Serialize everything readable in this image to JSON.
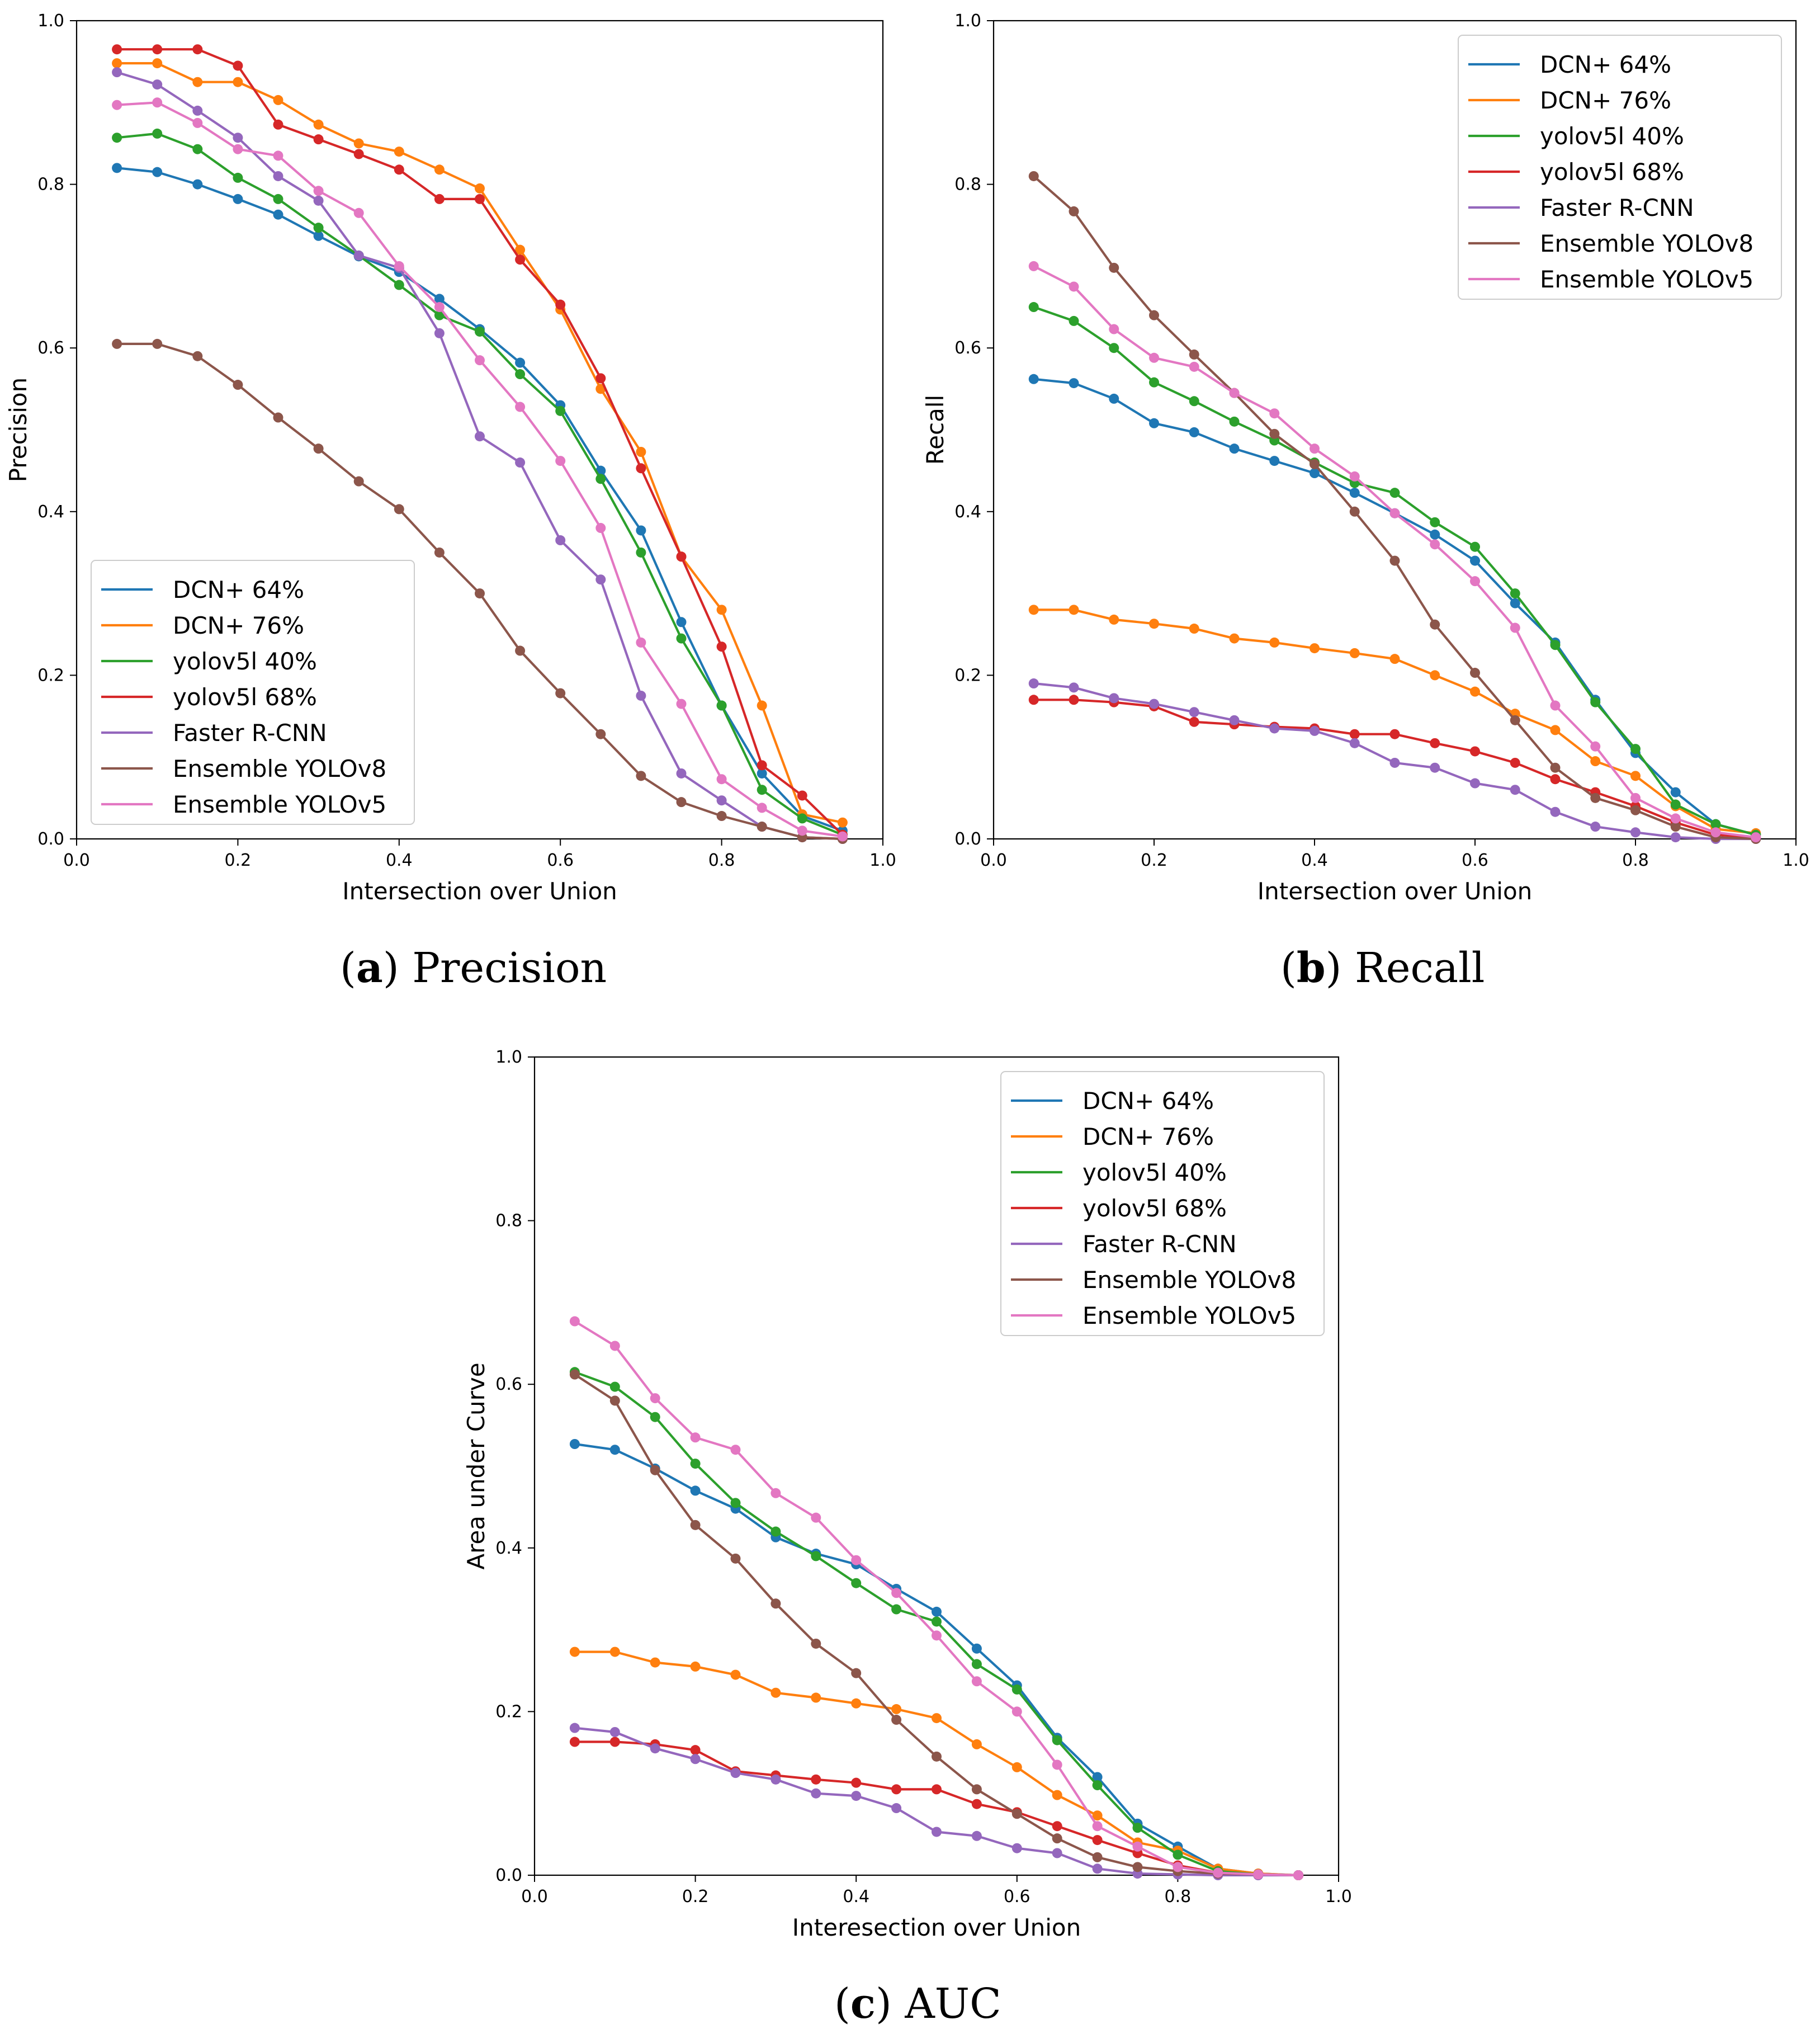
{
  "chart_data": [
    {
      "type": "line",
      "caption_letter": "a",
      "caption_text": "Precision",
      "xlabel": "Intersection over Union",
      "ylabel": "Precision",
      "xlim": [
        0.0,
        1.0
      ],
      "ylim": [
        0.0,
        1.0
      ],
      "xticks": [
        "0.0",
        "0.2",
        "0.4",
        "0.6",
        "0.8",
        "1.0"
      ],
      "yticks": [
        "0.0",
        "0.2",
        "0.4",
        "0.6",
        "0.8",
        "1.0"
      ],
      "legend_position": "lower-left",
      "x": [
        0.05,
        0.1,
        0.15,
        0.2,
        0.25,
        0.3,
        0.35,
        0.4,
        0.45,
        0.5,
        0.55,
        0.6,
        0.65,
        0.7,
        0.75,
        0.8,
        0.85,
        0.9,
        0.95
      ],
      "series": [
        {
          "name": "DCN+ 64%",
          "color": "#1f77b4",
          "values": [
            0.82,
            0.815,
            0.8,
            0.782,
            0.763,
            0.737,
            0.712,
            0.693,
            0.66,
            0.623,
            0.582,
            0.53,
            0.45,
            0.377,
            0.265,
            0.163,
            0.08,
            0.028,
            0.01
          ]
        },
        {
          "name": "DCN+ 76%",
          "color": "#ff7f0e",
          "values": [
            0.948,
            0.948,
            0.925,
            0.925,
            0.903,
            0.873,
            0.85,
            0.84,
            0.818,
            0.795,
            0.72,
            0.647,
            0.55,
            0.473,
            0.345,
            0.28,
            0.163,
            0.03,
            0.02
          ]
        },
        {
          "name": "yolov5l 40%",
          "color": "#2ca02c",
          "values": [
            0.857,
            0.862,
            0.843,
            0.808,
            0.782,
            0.747,
            0.713,
            0.677,
            0.64,
            0.62,
            0.568,
            0.523,
            0.44,
            0.35,
            0.245,
            0.163,
            0.06,
            0.025,
            0.005
          ]
        },
        {
          "name": "yolov5l 68%",
          "color": "#d62728",
          "values": [
            0.965,
            0.965,
            0.965,
            0.945,
            0.873,
            0.855,
            0.837,
            0.818,
            0.782,
            0.782,
            0.708,
            0.653,
            0.563,
            0.453,
            0.345,
            0.235,
            0.09,
            0.053,
            0.005
          ]
        },
        {
          "name": "Faster R-CNN",
          "color": "#9467bd",
          "values": [
            0.937,
            0.922,
            0.89,
            0.857,
            0.81,
            0.78,
            0.713,
            0.698,
            0.618,
            0.492,
            0.46,
            0.365,
            0.317,
            0.175,
            0.08,
            0.047,
            0.015,
            0.002,
            0.0
          ]
        },
        {
          "name": "Ensemble YOLOv8",
          "color": "#8c564b",
          "values": [
            0.605,
            0.605,
            0.59,
            0.555,
            0.515,
            0.477,
            0.437,
            0.403,
            0.35,
            0.3,
            0.23,
            0.178,
            0.128,
            0.077,
            0.045,
            0.028,
            0.015,
            0.002,
            0.0
          ]
        },
        {
          "name": "Ensemble YOLOv5",
          "color": "#e377c2",
          "values": [
            0.897,
            0.9,
            0.875,
            0.843,
            0.835,
            0.792,
            0.765,
            0.7,
            0.65,
            0.585,
            0.528,
            0.462,
            0.38,
            0.24,
            0.165,
            0.073,
            0.038,
            0.01,
            0.003
          ]
        }
      ]
    },
    {
      "type": "line",
      "caption_letter": "b",
      "caption_text": "Recall",
      "xlabel": "Intersection over Union",
      "ylabel": "Recall",
      "xlim": [
        0.0,
        1.0
      ],
      "ylim": [
        0.0,
        1.0
      ],
      "xticks": [
        "0.0",
        "0.2",
        "0.4",
        "0.6",
        "0.8",
        "1.0"
      ],
      "yticks": [
        "0.0",
        "0.2",
        "0.4",
        "0.6",
        "0.8",
        "1.0"
      ],
      "legend_position": "upper-right",
      "x": [
        0.05,
        0.1,
        0.15,
        0.2,
        0.25,
        0.3,
        0.35,
        0.4,
        0.45,
        0.5,
        0.55,
        0.6,
        0.65,
        0.7,
        0.75,
        0.8,
        0.85,
        0.9,
        0.95
      ],
      "series": [
        {
          "name": "DCN+ 64%",
          "color": "#1f77b4",
          "values": [
            0.562,
            0.557,
            0.538,
            0.508,
            0.497,
            0.477,
            0.462,
            0.447,
            0.423,
            0.398,
            0.372,
            0.34,
            0.288,
            0.24,
            0.17,
            0.105,
            0.057,
            0.018,
            0.005
          ]
        },
        {
          "name": "DCN+ 76%",
          "color": "#ff7f0e",
          "values": [
            0.28,
            0.28,
            0.268,
            0.263,
            0.257,
            0.245,
            0.24,
            0.233,
            0.227,
            0.22,
            0.2,
            0.18,
            0.153,
            0.133,
            0.095,
            0.077,
            0.04,
            0.012,
            0.007
          ]
        },
        {
          "name": "yolov5l 40%",
          "color": "#2ca02c",
          "values": [
            0.65,
            0.633,
            0.6,
            0.558,
            0.535,
            0.51,
            0.487,
            0.46,
            0.435,
            0.423,
            0.387,
            0.357,
            0.3,
            0.237,
            0.167,
            0.11,
            0.042,
            0.018,
            0.005
          ]
        },
        {
          "name": "yolov5l 68%",
          "color": "#d62728",
          "values": [
            0.17,
            0.17,
            0.167,
            0.162,
            0.143,
            0.14,
            0.137,
            0.135,
            0.128,
            0.128,
            0.117,
            0.107,
            0.093,
            0.073,
            0.057,
            0.04,
            0.02,
            0.005,
            0.002
          ]
        },
        {
          "name": "Faster R-CNN",
          "color": "#9467bd",
          "values": [
            0.19,
            0.185,
            0.172,
            0.165,
            0.155,
            0.145,
            0.135,
            0.132,
            0.117,
            0.093,
            0.087,
            0.068,
            0.06,
            0.033,
            0.015,
            0.008,
            0.002,
            0.0,
            0.0
          ]
        },
        {
          "name": "Ensemble YOLOv8",
          "color": "#8c564b",
          "values": [
            0.81,
            0.767,
            0.698,
            0.64,
            0.592,
            0.545,
            0.495,
            0.458,
            0.4,
            0.34,
            0.262,
            0.203,
            0.145,
            0.087,
            0.05,
            0.035,
            0.015,
            0.002,
            0.0
          ]
        },
        {
          "name": "Ensemble YOLOv5",
          "color": "#e377c2",
          "values": [
            0.7,
            0.675,
            0.623,
            0.588,
            0.577,
            0.545,
            0.52,
            0.477,
            0.443,
            0.398,
            0.36,
            0.315,
            0.258,
            0.163,
            0.113,
            0.05,
            0.025,
            0.008,
            0.002
          ]
        }
      ]
    },
    {
      "type": "line",
      "caption_letter": "c",
      "caption_text": "AUC",
      "xlabel": "Interesection over Union",
      "ylabel": "Area under Curve",
      "xlim": [
        0.0,
        1.0
      ],
      "ylim": [
        0.0,
        1.0
      ],
      "xticks": [
        "0.0",
        "0.2",
        "0.4",
        "0.6",
        "0.8",
        "1.0"
      ],
      "yticks": [
        "0.0",
        "0.2",
        "0.4",
        "0.6",
        "0.8",
        "1.0"
      ],
      "legend_position": "upper-right",
      "x": [
        0.05,
        0.1,
        0.15,
        0.2,
        0.25,
        0.3,
        0.35,
        0.4,
        0.45,
        0.5,
        0.55,
        0.6,
        0.65,
        0.7,
        0.75,
        0.8,
        0.85,
        0.9,
        0.95
      ],
      "series": [
        {
          "name": "DCN+ 64%",
          "color": "#1f77b4",
          "values": [
            0.527,
            0.52,
            0.497,
            0.47,
            0.448,
            0.413,
            0.393,
            0.38,
            0.35,
            0.322,
            0.277,
            0.232,
            0.168,
            0.12,
            0.063,
            0.035,
            0.008,
            0.002,
            0.0
          ]
        },
        {
          "name": "DCN+ 76%",
          "color": "#ff7f0e",
          "values": [
            0.273,
            0.273,
            0.26,
            0.255,
            0.245,
            0.223,
            0.217,
            0.21,
            0.203,
            0.192,
            0.16,
            0.132,
            0.098,
            0.073,
            0.04,
            0.03,
            0.008,
            0.002,
            0.0
          ]
        },
        {
          "name": "yolov5l 40%",
          "color": "#2ca02c",
          "values": [
            0.615,
            0.597,
            0.56,
            0.503,
            0.455,
            0.42,
            0.39,
            0.357,
            0.325,
            0.31,
            0.258,
            0.227,
            0.165,
            0.11,
            0.058,
            0.025,
            0.005,
            0.001,
            0.0
          ]
        },
        {
          "name": "yolov5l 68%",
          "color": "#d62728",
          "values": [
            0.163,
            0.163,
            0.16,
            0.153,
            0.127,
            0.122,
            0.117,
            0.113,
            0.105,
            0.105,
            0.087,
            0.077,
            0.06,
            0.043,
            0.027,
            0.012,
            0.003,
            0.001,
            0.0
          ]
        },
        {
          "name": "Faster R-CNN",
          "color": "#9467bd",
          "values": [
            0.18,
            0.175,
            0.155,
            0.142,
            0.125,
            0.117,
            0.1,
            0.097,
            0.082,
            0.053,
            0.048,
            0.033,
            0.027,
            0.008,
            0.002,
            0.001,
            0.0,
            0.0,
            0.0
          ]
        },
        {
          "name": "Ensemble YOLOv8",
          "color": "#8c564b",
          "values": [
            0.612,
            0.58,
            0.495,
            0.428,
            0.387,
            0.332,
            0.283,
            0.247,
            0.19,
            0.145,
            0.105,
            0.075,
            0.045,
            0.022,
            0.01,
            0.005,
            0.002,
            0.001,
            0.0
          ]
        },
        {
          "name": "Ensemble YOLOv5",
          "color": "#e377c2",
          "values": [
            0.677,
            0.647,
            0.583,
            0.535,
            0.52,
            0.467,
            0.437,
            0.385,
            0.345,
            0.293,
            0.237,
            0.2,
            0.135,
            0.06,
            0.035,
            0.01,
            0.003,
            0.001,
            0.0
          ]
        }
      ]
    }
  ]
}
